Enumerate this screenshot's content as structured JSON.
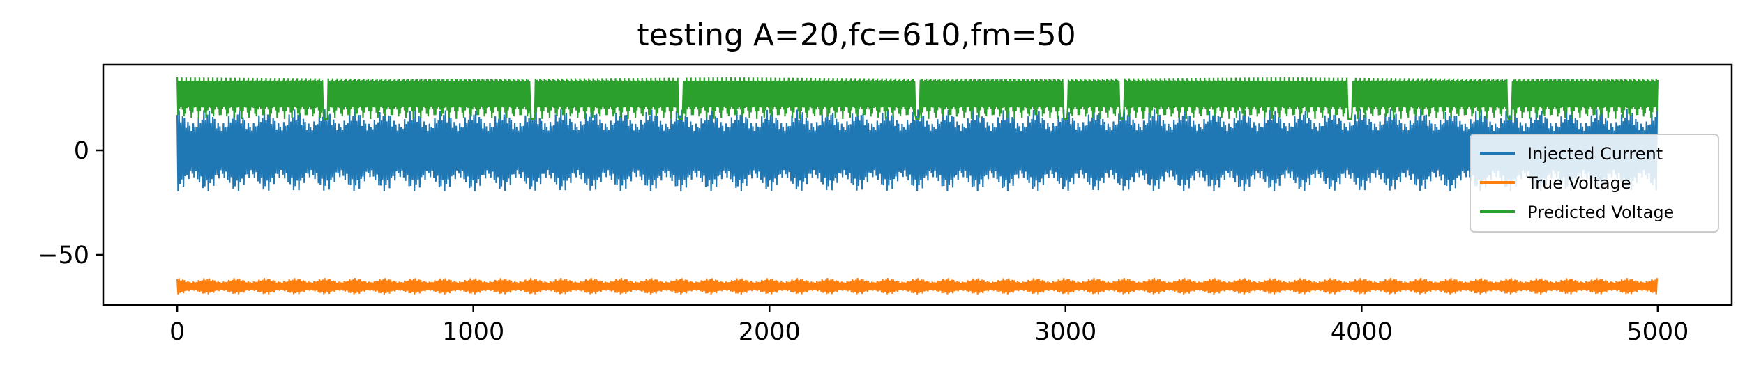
{
  "chart_data": {
    "type": "line",
    "title": "testing A=20,fc=610,fm=50",
    "xlabel": "",
    "ylabel": "",
    "xlim": [
      -250,
      5250
    ],
    "ylim": [
      -74,
      41
    ],
    "x_ticks": [
      0,
      1000,
      2000,
      3000,
      4000,
      5000
    ],
    "x_tick_labels": [
      "0",
      "1000",
      "2000",
      "3000",
      "4000",
      "5000"
    ],
    "y_ticks": [
      0,
      -50
    ],
    "y_tick_labels": [
      "0",
      "−50"
    ],
    "grid": false,
    "legend_position": "right",
    "x_range": [
      0,
      5000
    ],
    "series": [
      {
        "name": "Injected Current",
        "color": "#1f77b4",
        "kind": "amplitude-modulated carrier",
        "offset": 0,
        "carrier_amplitude": 20,
        "envelope_depth": 0.35,
        "burst_period": 100
      },
      {
        "name": "True Voltage",
        "color": "#ff7f0e",
        "kind": "amplitude-modulated carrier",
        "offset": -65,
        "carrier_amplitude": 4,
        "envelope_depth": 0.45,
        "burst_period": 100
      },
      {
        "name": "Predicted Voltage",
        "color": "#2ca02c",
        "kind": "dense band",
        "band_min": 15,
        "band_max": 35,
        "dips": [
          500,
          1200,
          1700,
          2500,
          3000,
          3190,
          3960,
          4500
        ]
      }
    ]
  }
}
